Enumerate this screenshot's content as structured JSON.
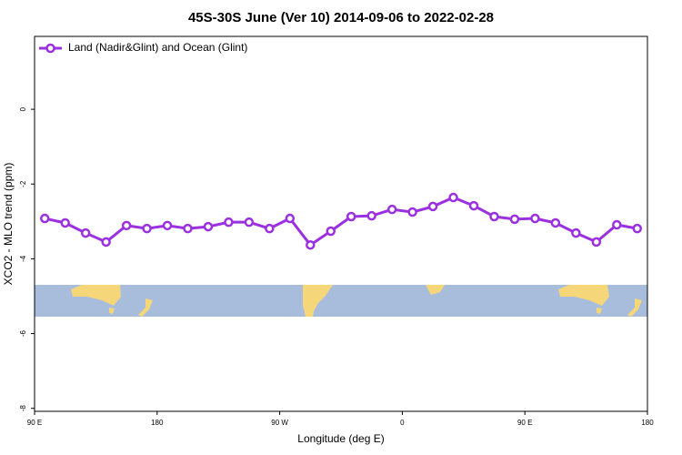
{
  "chart_data": {
    "type": "line",
    "title": "45S-30S June (Ver 10)   2014-09-06 to 2022-02-28",
    "x_label": "Longitude (deg E)",
    "y_label": "XCO2 - MLO trend (ppm)",
    "x": [
      97.5,
      112.5,
      127.5,
      142.5,
      157.5,
      172.5,
      187.5,
      202.5,
      217.5,
      232.5,
      247.5,
      262.5,
      277.5,
      292.5,
      307.5,
      322.5,
      337.5,
      352.5,
      367.5,
      382.5,
      397.5,
      412.5,
      427.5,
      442.5,
      457.5,
      472.5,
      487.5,
      502.5,
      517.5,
      532.5
    ],
    "series": [
      {
        "name": "Land (Nadir&Glint) and Ocean (Glint)",
        "color": "#9b30e0",
        "values": [
          -2.92,
          -3.04,
          -3.31,
          -3.55,
          -3.11,
          -3.19,
          -3.11,
          -3.19,
          -3.14,
          -3.02,
          -3.02,
          -3.19,
          -2.92,
          -3.63,
          -3.26,
          -2.87,
          -2.85,
          -2.68,
          -2.75,
          -2.6,
          -2.36,
          -2.58,
          -2.87,
          -2.94,
          -2.92,
          -3.04,
          -3.31,
          -3.55,
          -3.09,
          -3.19
        ]
      }
    ],
    "xlim": [
      90,
      540
    ],
    "xticks": [
      {
        "value": 90,
        "label": "90 E"
      },
      {
        "value": 180,
        "label": "180"
      },
      {
        "value": 270,
        "label": "90 W"
      },
      {
        "value": 360,
        "label": "0"
      },
      {
        "value": 450,
        "label": "90 E"
      },
      {
        "value": 540,
        "label": "180"
      }
    ],
    "ylim": [
      -8.08,
      1.95
    ],
    "yticks": [
      0,
      -2,
      -4,
      -6,
      -8
    ],
    "legend": "topleft"
  }
}
